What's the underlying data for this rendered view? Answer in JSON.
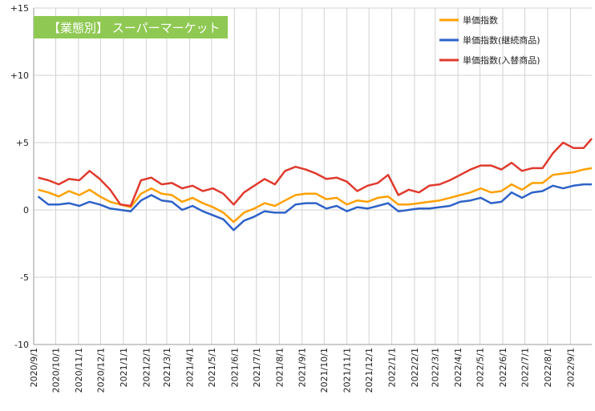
{
  "chart_data": {
    "type": "line",
    "title": "【業態別】 スーパーマーケット",
    "title_bg_color": "#8fc953",
    "ylim": [
      -10,
      15
    ],
    "y_ticks": [
      "-10",
      "-5",
      "0",
      "+5",
      "+10",
      "+15"
    ],
    "y_tick_values": [
      -10,
      -5,
      0,
      5,
      10,
      15
    ],
    "x_start": "2020/9/1",
    "x_end": "2022/9/30",
    "x_ticks": [
      "2020/9/1",
      "2020/10/1",
      "2020/11/1",
      "2020/12/1",
      "2021/1/1",
      "2021/2/1",
      "2021/3/1",
      "2021/4/1",
      "2021/5/1",
      "2021/6/1",
      "2021/7/1",
      "2021/8/1",
      "2021/9/1",
      "2021/10/1",
      "2021/11/1",
      "2021/12/1",
      "2022/1/1",
      "2022/2/1",
      "2022/3/1",
      "2022/4/1",
      "2022/5/1",
      "2022/6/1",
      "2022/7/1",
      "2022/8/1",
      "2022/9/1"
    ],
    "grid": true,
    "legend_position": "top-right",
    "series": [
      {
        "name": "単価指数",
        "color": "#ffa000",
        "points": [
          [
            "2020/9/7",
            1.5
          ],
          [
            "2020/9/21",
            1.3
          ],
          [
            "2020/10/5",
            1.0
          ],
          [
            "2020/10/19",
            1.4
          ],
          [
            "2020/11/2",
            1.1
          ],
          [
            "2020/11/16",
            1.5
          ],
          [
            "2020/11/30",
            1.0
          ],
          [
            "2020/12/14",
            0.6
          ],
          [
            "2020/12/28",
            0.4
          ],
          [
            "2021/1/11",
            0.2
          ],
          [
            "2021/1/25",
            1.2
          ],
          [
            "2021/2/8",
            1.6
          ],
          [
            "2021/2/22",
            1.2
          ],
          [
            "2021/3/8",
            1.1
          ],
          [
            "2021/3/22",
            0.6
          ],
          [
            "2021/4/5",
            0.9
          ],
          [
            "2021/4/19",
            0.5
          ],
          [
            "2021/5/3",
            0.2
          ],
          [
            "2021/5/17",
            -0.2
          ],
          [
            "2021/5/31",
            -0.9
          ],
          [
            "2021/6/14",
            -0.2
          ],
          [
            "2021/6/28",
            0.1
          ],
          [
            "2021/7/12",
            0.5
          ],
          [
            "2021/7/26",
            0.3
          ],
          [
            "2021/8/9",
            0.7
          ],
          [
            "2021/8/23",
            1.1
          ],
          [
            "2021/9/6",
            1.2
          ],
          [
            "2021/9/20",
            1.2
          ],
          [
            "2021/10/4",
            0.8
          ],
          [
            "2021/10/18",
            0.9
          ],
          [
            "2021/11/1",
            0.4
          ],
          [
            "2021/11/15",
            0.7
          ],
          [
            "2021/11/29",
            0.6
          ],
          [
            "2021/12/13",
            0.9
          ],
          [
            "2021/12/27",
            1.0
          ],
          [
            "2022/1/10",
            0.4
          ],
          [
            "2022/1/24",
            0.4
          ],
          [
            "2022/2/7",
            0.5
          ],
          [
            "2022/2/21",
            0.6
          ],
          [
            "2022/3/7",
            0.7
          ],
          [
            "2022/3/21",
            0.9
          ],
          [
            "2022/4/4",
            1.1
          ],
          [
            "2022/4/18",
            1.3
          ],
          [
            "2022/5/2",
            1.6
          ],
          [
            "2022/5/16",
            1.3
          ],
          [
            "2022/5/30",
            1.4
          ],
          [
            "2022/6/13",
            1.9
          ],
          [
            "2022/6/27",
            1.5
          ],
          [
            "2022/7/11",
            2.0
          ],
          [
            "2022/7/25",
            2.0
          ],
          [
            "2022/8/8",
            2.6
          ],
          [
            "2022/8/22",
            2.7
          ],
          [
            "2022/9/5",
            2.8
          ],
          [
            "2022/9/19",
            3.0
          ],
          [
            "2022/9/30",
            3.1
          ]
        ]
      },
      {
        "name": "単価指数(継続商品)",
        "color": "#2e62c8",
        "points": [
          [
            "2020/9/7",
            1.0
          ],
          [
            "2020/9/21",
            0.4
          ],
          [
            "2020/10/5",
            0.4
          ],
          [
            "2020/10/19",
            0.5
          ],
          [
            "2020/11/2",
            0.3
          ],
          [
            "2020/11/16",
            0.6
          ],
          [
            "2020/11/30",
            0.4
          ],
          [
            "2020/12/14",
            0.1
          ],
          [
            "2020/12/28",
            0.0
          ],
          [
            "2021/1/11",
            -0.1
          ],
          [
            "2021/1/25",
            0.7
          ],
          [
            "2021/2/8",
            1.1
          ],
          [
            "2021/2/22",
            0.7
          ],
          [
            "2021/3/8",
            0.6
          ],
          [
            "2021/3/22",
            0.0
          ],
          [
            "2021/4/5",
            0.3
          ],
          [
            "2021/4/19",
            -0.1
          ],
          [
            "2021/5/3",
            -0.4
          ],
          [
            "2021/5/17",
            -0.7
          ],
          [
            "2021/5/31",
            -1.5
          ],
          [
            "2021/6/14",
            -0.8
          ],
          [
            "2021/6/28",
            -0.5
          ],
          [
            "2021/7/12",
            -0.1
          ],
          [
            "2021/7/26",
            -0.2
          ],
          [
            "2021/8/9",
            -0.2
          ],
          [
            "2021/8/23",
            0.4
          ],
          [
            "2021/9/6",
            0.5
          ],
          [
            "2021/9/20",
            0.5
          ],
          [
            "2021/10/4",
            0.1
          ],
          [
            "2021/10/18",
            0.3
          ],
          [
            "2021/11/1",
            -0.1
          ],
          [
            "2021/11/15",
            0.2
          ],
          [
            "2021/11/29",
            0.1
          ],
          [
            "2021/12/13",
            0.3
          ],
          [
            "2021/12/27",
            0.5
          ],
          [
            "2022/1/10",
            -0.1
          ],
          [
            "2022/1/24",
            0.0
          ],
          [
            "2022/2/7",
            0.1
          ],
          [
            "2022/2/21",
            0.1
          ],
          [
            "2022/3/7",
            0.2
          ],
          [
            "2022/3/21",
            0.3
          ],
          [
            "2022/4/4",
            0.6
          ],
          [
            "2022/4/18",
            0.7
          ],
          [
            "2022/5/2",
            0.9
          ],
          [
            "2022/5/16",
            0.5
          ],
          [
            "2022/5/30",
            0.6
          ],
          [
            "2022/6/13",
            1.3
          ],
          [
            "2022/6/27",
            0.9
          ],
          [
            "2022/7/11",
            1.3
          ],
          [
            "2022/7/25",
            1.4
          ],
          [
            "2022/8/8",
            1.8
          ],
          [
            "2022/8/22",
            1.6
          ],
          [
            "2022/9/5",
            1.8
          ],
          [
            "2022/9/19",
            1.9
          ],
          [
            "2022/9/30",
            1.9
          ]
        ]
      },
      {
        "name": "単価指数(入替商品)",
        "color": "#e03a2e",
        "points": [
          [
            "2020/9/7",
            2.4
          ],
          [
            "2020/9/21",
            2.2
          ],
          [
            "2020/10/5",
            1.9
          ],
          [
            "2020/10/19",
            2.3
          ],
          [
            "2020/11/2",
            2.2
          ],
          [
            "2020/11/16",
            2.9
          ],
          [
            "2020/11/30",
            2.3
          ],
          [
            "2020/12/14",
            1.5
          ],
          [
            "2020/12/28",
            0.4
          ],
          [
            "2021/1/11",
            0.3
          ],
          [
            "2021/1/25",
            2.2
          ],
          [
            "2021/2/8",
            2.4
          ],
          [
            "2021/2/22",
            1.9
          ],
          [
            "2021/3/8",
            2.0
          ],
          [
            "2021/3/22",
            1.6
          ],
          [
            "2021/4/5",
            1.8
          ],
          [
            "2021/4/19",
            1.4
          ],
          [
            "2021/5/3",
            1.6
          ],
          [
            "2021/5/17",
            1.2
          ],
          [
            "2021/5/31",
            0.4
          ],
          [
            "2021/6/14",
            1.3
          ],
          [
            "2021/6/28",
            1.8
          ],
          [
            "2021/7/12",
            2.3
          ],
          [
            "2021/7/26",
            1.9
          ],
          [
            "2021/8/9",
            2.9
          ],
          [
            "2021/8/23",
            3.2
          ],
          [
            "2021/9/6",
            3.0
          ],
          [
            "2021/9/20",
            2.7
          ],
          [
            "2021/10/4",
            2.3
          ],
          [
            "2021/10/18",
            2.4
          ],
          [
            "2021/11/1",
            2.1
          ],
          [
            "2021/11/15",
            1.4
          ],
          [
            "2021/11/29",
            1.8
          ],
          [
            "2021/12/13",
            2.0
          ],
          [
            "2021/12/27",
            2.6
          ],
          [
            "2022/1/10",
            1.1
          ],
          [
            "2022/1/24",
            1.5
          ],
          [
            "2022/2/7",
            1.3
          ],
          [
            "2022/2/21",
            1.8
          ],
          [
            "2022/3/7",
            1.9
          ],
          [
            "2022/3/21",
            2.2
          ],
          [
            "2022/4/4",
            2.6
          ],
          [
            "2022/4/18",
            3.0
          ],
          [
            "2022/5/2",
            3.3
          ],
          [
            "2022/5/16",
            3.3
          ],
          [
            "2022/5/30",
            3.0
          ],
          [
            "2022/6/13",
            3.5
          ],
          [
            "2022/6/27",
            2.9
          ],
          [
            "2022/7/11",
            3.1
          ],
          [
            "2022/7/25",
            3.1
          ],
          [
            "2022/8/8",
            4.2
          ],
          [
            "2022/8/22",
            5.0
          ],
          [
            "2022/9/5",
            4.6
          ],
          [
            "2022/9/19",
            4.6
          ],
          [
            "2022/9/30",
            5.3
          ]
        ]
      }
    ]
  }
}
